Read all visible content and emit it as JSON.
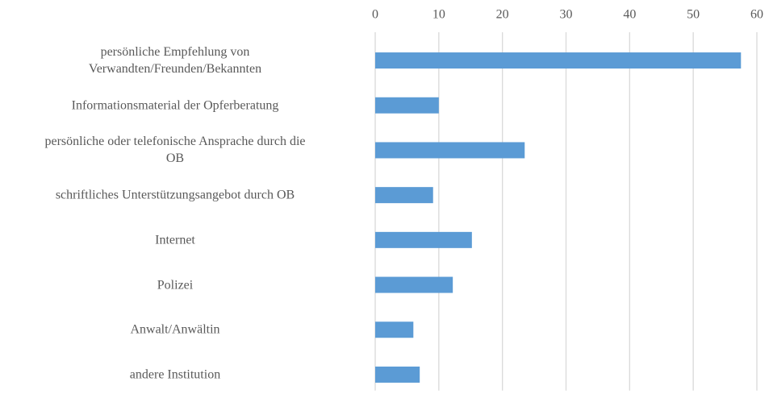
{
  "chart_data": {
    "type": "bar",
    "orientation": "horizontal",
    "categories": [
      "persönliche Empfehlung von\nVerwandten/Freunden/Bekannten",
      "Informationsmaterial der Opferberatung",
      "persönliche oder telefonische Ansprache durch die\nOB",
      "schriftliches Unterstützungsangebot durch OB",
      "Internet",
      "Polizei",
      "Anwalt/Anwältin",
      "andere Institution"
    ],
    "values": [
      57.5,
      10,
      23.5,
      9.1,
      15.2,
      12.2,
      6,
      7
    ],
    "color": "#5b9bd5",
    "xlim": [
      0,
      60
    ],
    "xticks": [
      0,
      10,
      20,
      30,
      40,
      50,
      60
    ],
    "grid": true
  }
}
